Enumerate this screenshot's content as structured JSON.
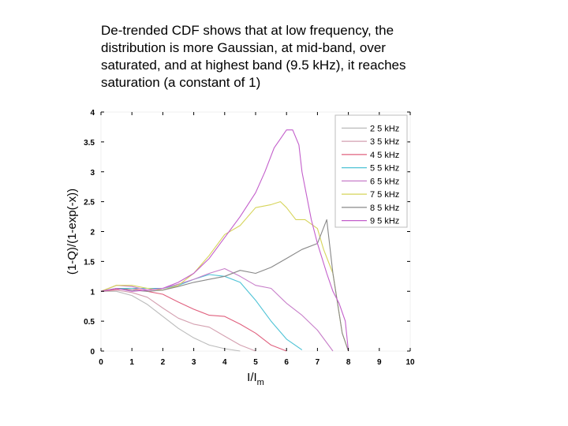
{
  "caption": {
    "lines": [
      "De-trended CDF shows that at low frequency, the",
      "distribution is more Gaussian, at mid-band, over",
      "saturated, and at highest band (9.5 kHz), it reaches",
      "saturation (a constant of 1)"
    ]
  },
  "chart_data": {
    "type": "line",
    "xlabel": "I/I",
    "xlabel_subscript": "m",
    "ylabel": "(1-Q)/(1-exp(-x))",
    "xlim": [
      0,
      10
    ],
    "ylim": [
      0,
      4
    ],
    "xticks": [
      "0",
      "1",
      "2",
      "3",
      "4",
      "5",
      "6",
      "7",
      "8",
      "9",
      "10"
    ],
    "yticks": [
      "0",
      "0.5",
      "1",
      "1.5",
      "2",
      "2.5",
      "3",
      "3.5",
      "4"
    ],
    "grid": false,
    "legend_position": "top-right",
    "series": [
      {
        "name": "2 5 kHz",
        "color": "#bbbbbb",
        "points": [
          [
            0,
            1.0
          ],
          [
            0.5,
            1.0
          ],
          [
            1,
            0.93
          ],
          [
            1.5,
            0.78
          ],
          [
            2,
            0.58
          ],
          [
            2.5,
            0.38
          ],
          [
            3,
            0.22
          ],
          [
            3.5,
            0.1
          ],
          [
            4,
            0.04
          ],
          [
            4.5,
            0.0
          ]
        ]
      },
      {
        "name": "3 5 kHz",
        "color": "#d4a0b0",
        "points": [
          [
            0,
            1.0
          ],
          [
            0.5,
            1.02
          ],
          [
            1,
            0.98
          ],
          [
            1.5,
            0.9
          ],
          [
            2,
            0.72
          ],
          [
            2.5,
            0.55
          ],
          [
            3,
            0.45
          ],
          [
            3.5,
            0.4
          ],
          [
            4,
            0.25
          ],
          [
            4.5,
            0.1
          ],
          [
            5,
            0.0
          ]
        ]
      },
      {
        "name": "4 5 kHz",
        "color": "#e0607e",
        "points": [
          [
            0,
            1.0
          ],
          [
            0.5,
            1.03
          ],
          [
            1,
            1.05
          ],
          [
            1.5,
            1.0
          ],
          [
            2,
            0.95
          ],
          [
            2.5,
            0.82
          ],
          [
            3,
            0.7
          ],
          [
            3.5,
            0.6
          ],
          [
            4,
            0.58
          ],
          [
            4.5,
            0.45
          ],
          [
            5,
            0.3
          ],
          [
            5.5,
            0.1
          ],
          [
            6,
            0.0
          ]
        ]
      },
      {
        "name": "5 5 kHz",
        "color": "#4fc3d6",
        "points": [
          [
            0,
            1.0
          ],
          [
            0.5,
            1.05
          ],
          [
            1,
            1.05
          ],
          [
            1.5,
            1.05
          ],
          [
            2,
            1.05
          ],
          [
            2.5,
            1.1
          ],
          [
            3,
            1.2
          ],
          [
            3.5,
            1.28
          ],
          [
            4,
            1.25
          ],
          [
            4.5,
            1.15
          ],
          [
            5,
            0.85
          ],
          [
            5.5,
            0.5
          ],
          [
            6,
            0.2
          ],
          [
            6.5,
            0.02
          ]
        ]
      },
      {
        "name": "6 5 kHz",
        "color": "#c77ec9",
        "points": [
          [
            0,
            1.0
          ],
          [
            0.5,
            1.1
          ],
          [
            1,
            1.08
          ],
          [
            1.5,
            1.02
          ],
          [
            2,
            1.05
          ],
          [
            2.5,
            1.12
          ],
          [
            3,
            1.2
          ],
          [
            3.5,
            1.3
          ],
          [
            4,
            1.38
          ],
          [
            4.5,
            1.25
          ],
          [
            5,
            1.1
          ],
          [
            5.5,
            1.05
          ],
          [
            6,
            0.8
          ],
          [
            6.5,
            0.6
          ],
          [
            7,
            0.35
          ],
          [
            7.5,
            0.0
          ]
        ]
      },
      {
        "name": "7 5 kHz",
        "color": "#d6d45a",
        "points": [
          [
            0,
            1.0
          ],
          [
            0.5,
            1.1
          ],
          [
            1,
            1.1
          ],
          [
            1.5,
            1.05
          ],
          [
            2,
            1.02
          ],
          [
            2.5,
            1.1
          ],
          [
            3,
            1.3
          ],
          [
            3.5,
            1.6
          ],
          [
            4,
            1.95
          ],
          [
            4.5,
            2.1
          ],
          [
            5,
            2.4
          ],
          [
            5.5,
            2.45
          ],
          [
            5.8,
            2.5
          ],
          [
            6,
            2.4
          ],
          [
            6.3,
            2.2
          ],
          [
            6.6,
            2.2
          ],
          [
            7,
            2.05
          ],
          [
            7.2,
            1.7
          ],
          [
            7.5,
            1.3
          ],
          [
            7.8,
            0.3
          ],
          [
            8,
            0.0
          ]
        ]
      },
      {
        "name": "8 5 kHz",
        "color": "#888888",
        "points": [
          [
            0,
            1.0
          ],
          [
            0.5,
            1.05
          ],
          [
            1,
            1.02
          ],
          [
            1.5,
            1.0
          ],
          [
            2,
            1.02
          ],
          [
            2.5,
            1.08
          ],
          [
            3,
            1.15
          ],
          [
            3.5,
            1.2
          ],
          [
            4,
            1.25
          ],
          [
            4.5,
            1.35
          ],
          [
            5,
            1.3
          ],
          [
            5.5,
            1.4
          ],
          [
            6,
            1.55
          ],
          [
            6.5,
            1.7
          ],
          [
            7,
            1.8
          ],
          [
            7.3,
            2.2
          ],
          [
            7.5,
            1.3
          ],
          [
            7.8,
            0.3
          ],
          [
            8,
            0.0
          ]
        ]
      },
      {
        "name": "9 5 kHz",
        "color": "#c35ecb",
        "points": [
          [
            0,
            1.0
          ],
          [
            0.5,
            1.05
          ],
          [
            1,
            1.0
          ],
          [
            1.5,
            1.02
          ],
          [
            2,
            1.05
          ],
          [
            2.5,
            1.15
          ],
          [
            3,
            1.3
          ],
          [
            3.5,
            1.55
          ],
          [
            4,
            1.9
          ],
          [
            4.5,
            2.25
          ],
          [
            5,
            2.65
          ],
          [
            5.3,
            3.0
          ],
          [
            5.6,
            3.4
          ],
          [
            5.8,
            3.55
          ],
          [
            6,
            3.7
          ],
          [
            6.2,
            3.7
          ],
          [
            6.4,
            3.45
          ],
          [
            6.5,
            3.0
          ],
          [
            6.8,
            2.2
          ],
          [
            7,
            1.8
          ],
          [
            7.3,
            1.3
          ],
          [
            7.5,
            1.0
          ],
          [
            7.7,
            0.8
          ],
          [
            7.9,
            0.5
          ],
          [
            8,
            0.0
          ]
        ]
      }
    ]
  }
}
